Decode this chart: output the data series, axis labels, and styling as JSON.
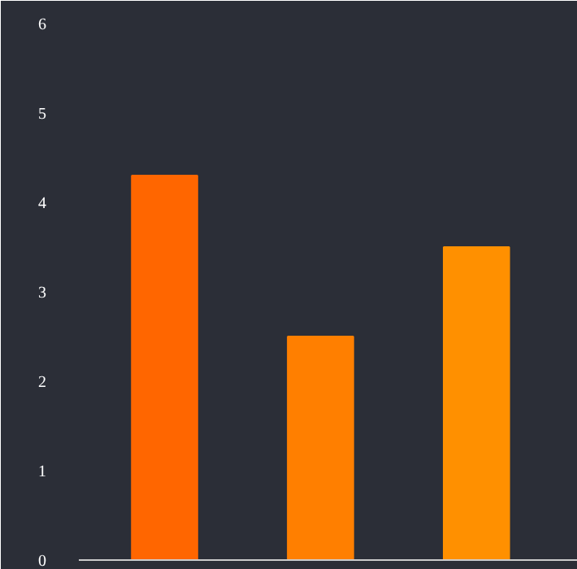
{
  "chart_data": {
    "type": "bar",
    "categories": [
      null,
      null,
      null
    ],
    "values": [
      4.3,
      2.5,
      3.5
    ],
    "colors": [
      "#ff6600",
      "#ff7f00",
      "#ff9000"
    ],
    "ylim": [
      0,
      6
    ],
    "yticks": [
      0,
      1,
      2,
      3,
      4,
      5,
      6
    ],
    "grid": false
  }
}
